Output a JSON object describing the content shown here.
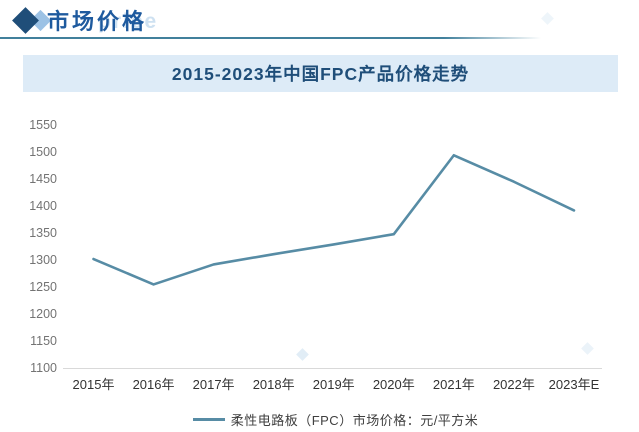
{
  "header": {
    "title": "市场价格",
    "watermark": "price"
  },
  "chart_data": {
    "type": "line",
    "title": "2015-2023年中国FPC产品价格走势",
    "categories": [
      "2015年",
      "2016年",
      "2017年",
      "2018年",
      "2019年",
      "2020年",
      "2021年",
      "2022年",
      "2023年E"
    ],
    "series": [
      {
        "name": "柔性电路板（FPC）市场价格：元/平方米",
        "values": [
          1302,
          1255,
          1292,
          1311,
          1329,
          1348,
          1494,
          1445,
          1392
        ]
      }
    ],
    "xlabel": "",
    "ylabel": "",
    "ylim": [
      1100,
      1550
    ],
    "ytick_step": 50,
    "grid": false,
    "legend_position": "bottom",
    "colors": {
      "line": "#578ca5",
      "title_text": "#1f4e79",
      "title_bar_bg": "#ddebf7",
      "header_text": "#1e5a9e",
      "header_rule": "#41809c",
      "axis_line": "#d9d9d9",
      "y_tick_text": "#737373",
      "x_tick_text": "#333333",
      "legend_text": "#404040"
    }
  }
}
